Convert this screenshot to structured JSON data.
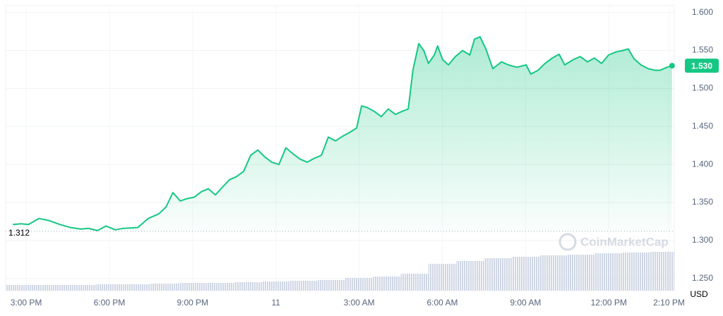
{
  "chart_data": {
    "type": "line",
    "currency": "USD",
    "watermark": "CoinMarketCap",
    "color": "#16c784",
    "below_color": "#ea3943",
    "grid": true,
    "baseline": {
      "value": 1.312,
      "label": "1.312"
    },
    "current_price": {
      "value": 1.53,
      "label": "1.530"
    },
    "xlim": [
      -0.74,
      23.36
    ],
    "ylim": [
      1.234,
      1.609
    ],
    "xticks": [
      {
        "value": 0,
        "label": "3:00 PM"
      },
      {
        "value": 3,
        "label": "6:00 PM"
      },
      {
        "value": 6,
        "label": "9:00 PM"
      },
      {
        "value": 9,
        "label": "11"
      },
      {
        "value": 12,
        "label": "3:00 AM"
      },
      {
        "value": 15,
        "label": "6:00 AM"
      },
      {
        "value": 18,
        "label": "9:00 AM"
      },
      {
        "value": 21,
        "label": "12:00 PM"
      },
      {
        "value": 23.17,
        "label": "2:10 PM"
      }
    ],
    "yticks": [
      {
        "value": 1.25,
        "label": "1.250"
      },
      {
        "value": 1.3,
        "label": "1.300"
      },
      {
        "value": 1.35,
        "label": "1.350"
      },
      {
        "value": 1.4,
        "label": "1.400"
      },
      {
        "value": 1.45,
        "label": "1.450"
      },
      {
        "value": 1.5,
        "label": "1.500"
      },
      {
        "value": 1.55,
        "label": "1.550"
      },
      {
        "value": 1.6,
        "label": "1.600"
      }
    ],
    "x": [
      -0.48,
      -0.18,
      0.08,
      0.46,
      0.84,
      1.22,
      1.6,
      1.98,
      2.24,
      2.57,
      2.88,
      3.21,
      3.51,
      4.02,
      4.4,
      4.78,
      5.04,
      5.29,
      5.55,
      5.8,
      6.06,
      6.31,
      6.56,
      6.82,
      7.07,
      7.33,
      7.58,
      7.84,
      8.09,
      8.35,
      8.6,
      8.85,
      9.11,
      9.36,
      9.62,
      9.87,
      10.13,
      10.38,
      10.64,
      10.89,
      11.15,
      11.4,
      11.65,
      11.91,
      12.09,
      12.29,
      12.54,
      12.8,
      13.05,
      13.31,
      13.56,
      13.77,
      13.94,
      14.15,
      14.33,
      14.5,
      14.71,
      14.83,
      15.01,
      15.22,
      15.47,
      15.73,
      15.99,
      16.16,
      16.36,
      16.57,
      16.82,
      17.13,
      17.38,
      17.68,
      18.02,
      18.19,
      18.45,
      18.7,
      18.96,
      19.21,
      19.41,
      19.72,
      19.97,
      20.23,
      20.48,
      20.74,
      20.99,
      21.25,
      21.5,
      21.7,
      21.91,
      22.16,
      22.42,
      22.67,
      22.85,
      23.1,
      23.28
    ],
    "values": [
      1.321,
      1.322,
      1.321,
      1.329,
      1.326,
      1.321,
      1.317,
      1.315,
      1.316,
      1.313,
      1.319,
      1.314,
      1.316,
      1.317,
      1.329,
      1.335,
      1.344,
      1.363,
      1.352,
      1.355,
      1.357,
      1.364,
      1.368,
      1.36,
      1.37,
      1.38,
      1.384,
      1.391,
      1.412,
      1.419,
      1.41,
      1.403,
      1.4,
      1.422,
      1.414,
      1.407,
      1.403,
      1.408,
      1.412,
      1.436,
      1.431,
      1.437,
      1.442,
      1.448,
      1.477,
      1.475,
      1.47,
      1.463,
      1.473,
      1.466,
      1.47,
      1.473,
      1.524,
      1.559,
      1.55,
      1.533,
      1.544,
      1.556,
      1.538,
      1.531,
      1.542,
      1.55,
      1.544,
      1.565,
      1.568,
      1.552,
      1.526,
      1.535,
      1.531,
      1.528,
      1.531,
      1.519,
      1.524,
      1.533,
      1.54,
      1.545,
      1.531,
      1.538,
      1.542,
      1.535,
      1.54,
      1.533,
      1.544,
      1.548,
      1.55,
      1.552,
      1.539,
      1.531,
      1.526,
      1.524,
      1.524,
      1.528,
      1.53
    ],
    "volume": {
      "ylim": [
        0,
        100
      ],
      "bins": [
        -0.74,
        0.5,
        1.5,
        2.5,
        3.5,
        4.5,
        5.5,
        6.5,
        7.5,
        8.5,
        9.5,
        10.5,
        11.5,
        12.5,
        13.5,
        14.5,
        15.5,
        16.5,
        17.5,
        18.5,
        19.5,
        20.5,
        21.5,
        22.5,
        23.36
      ],
      "values": [
        8,
        8,
        8,
        9,
        9,
        10,
        11,
        11,
        12,
        13,
        14,
        15,
        18,
        20,
        24,
        38,
        42,
        46,
        48,
        50,
        51,
        53,
        54,
        55
      ]
    }
  }
}
